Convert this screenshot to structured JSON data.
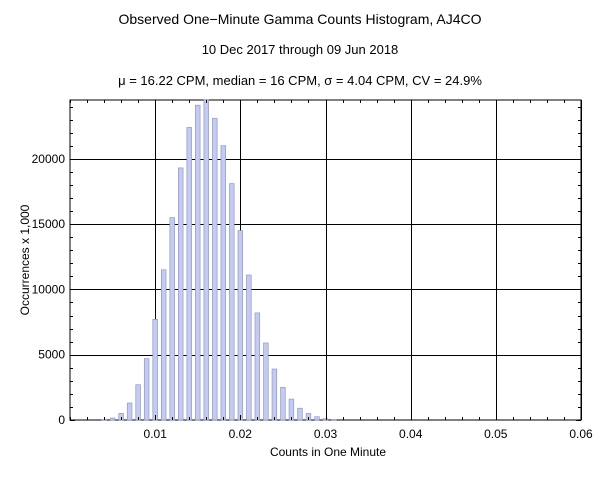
{
  "chart_data": {
    "type": "bar",
    "title": "Observed One−Minute Gamma Counts Histogram, AJ4CO",
    "subtitle": "10 Dec 2017 through 09 Jun 2018",
    "stats_line": "μ = 16.22 CPM,   median = 16 CPM,   σ = 4.04 CPM,   CV = 24.9%",
    "xlabel": "Counts in One Minute",
    "ylabel": "Occurrences x 1,000",
    "xlim": [
      0,
      0.06
    ],
    "ylim": [
      0,
      24500
    ],
    "x_ticks": [
      0.01,
      0.02,
      0.03,
      0.04,
      0.05,
      0.06
    ],
    "x_tick_labels": [
      "0.01",
      "0.02",
      "0.03",
      "0.04",
      "0.05",
      "0.06"
    ],
    "y_ticks": [
      0,
      5000,
      10000,
      15000,
      20000
    ],
    "y_tick_labels": [
      "0",
      "5000",
      "10000",
      "15000",
      "20000"
    ],
    "grid": true,
    "bar_color": "#c5cbee",
    "bar_edge_color": "#8f97cf",
    "bins": [
      0.004,
      0.005,
      0.006,
      0.007,
      0.008,
      0.009,
      0.01,
      0.011,
      0.012,
      0.013,
      0.014,
      0.015,
      0.016,
      0.017,
      0.018,
      0.019,
      0.02,
      0.021,
      0.022,
      0.023,
      0.024,
      0.025,
      0.026,
      0.027,
      0.028,
      0.029,
      0.03,
      0.031
    ],
    "values": [
      30,
      150,
      500,
      1300,
      2700,
      4700,
      7700,
      11500,
      15500,
      19300,
      22400,
      24100,
      24500,
      23100,
      21000,
      18100,
      14500,
      11100,
      8200,
      5900,
      3900,
      2500,
      1600,
      900,
      500,
      250,
      100,
      40
    ]
  }
}
